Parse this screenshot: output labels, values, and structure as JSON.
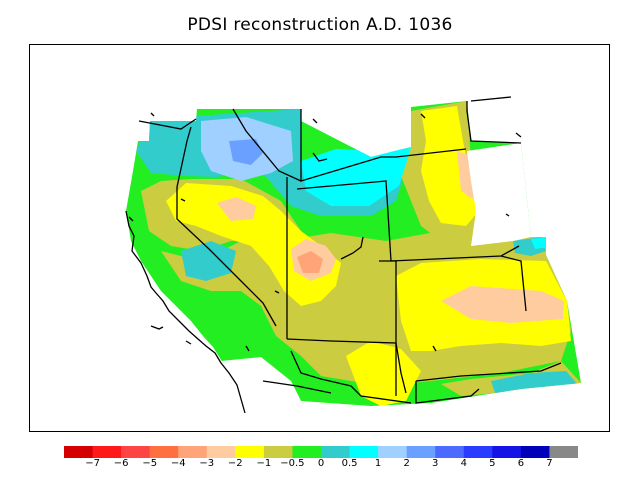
{
  "title": "PDSI reconstruction A.D. 1036",
  "map": {
    "variable": "PDSI",
    "year": "A.D. 1036",
    "region_features": [
      "state-boundaries",
      "coastline",
      "lakes"
    ]
  },
  "colorbar": {
    "colors": [
      "#d40000",
      "#ff1a1a",
      "#ff4444",
      "#ff7040",
      "#ffa478",
      "#ffcca0",
      "#ffff00",
      "#cccc40",
      "#22ee22",
      "#33cccc",
      "#00ffff",
      "#a0d0ff",
      "#6aa0ff",
      "#4d6aff",
      "#2a3cff",
      "#1414e6",
      "#0000b8",
      "#888888"
    ],
    "labels": [
      "−7",
      "−6",
      "−5",
      "−4",
      "−3",
      "−2",
      "−1",
      "−0.5",
      "0",
      "0.5",
      "1",
      "2",
      "3",
      "4",
      "5",
      "6",
      "7"
    ]
  }
}
